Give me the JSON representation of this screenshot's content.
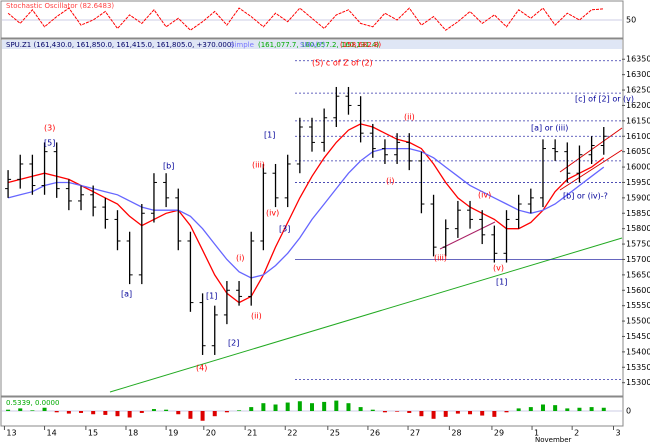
{
  "chart_data": {
    "type": "ohlc",
    "title": "SPU.Z1 (161,430.0, 161,850.0, 161,415.0, 161,805.0, +370.000)",
    "header_labels": [
      {
        "text": "Simple",
        "color": "#7777ff"
      },
      {
        "text": "(161,077.7, 160,657.2, 160,131.4)",
        "color": "#00aa00"
      },
      {
        "text": "SMA(7)",
        "color": "#7777ff"
      },
      {
        "text": "(158,682.8)",
        "color": "#ff0000"
      }
    ],
    "color": "#000000",
    "xlim": [
      -0.5,
      50.5
    ],
    "xticks": [
      {
        "value": -0.3,
        "label": "13"
      },
      {
        "value": 3,
        "label": "14"
      },
      {
        "value": 6.4,
        "label": "15"
      },
      {
        "value": 9.7,
        "label": "18"
      },
      {
        "value": 13,
        "label": "19"
      },
      {
        "value": 16.1,
        "label": "20"
      },
      {
        "value": 19.5,
        "label": "21"
      },
      {
        "value": 22.8,
        "label": "22"
      },
      {
        "value": 26.3,
        "label": "25"
      },
      {
        "value": 29.6,
        "label": "26"
      },
      {
        "value": 32.9,
        "label": "27"
      },
      {
        "value": 36.3,
        "label": "28"
      },
      {
        "value": 39.8,
        "label": "29"
      },
      {
        "value": 43.1,
        "label": "1"
      },
      {
        "value": 46.4,
        "label": "2"
      },
      {
        "value": 49.8,
        "label": "3"
      }
    ],
    "x_sublabel": "November",
    "ylim": [
      15260,
      16380
    ],
    "yticks": [
      15300,
      15350,
      15400,
      15450,
      15500,
      15550,
      15600,
      15650,
      15700,
      15750,
      15800,
      15850,
      15900,
      15950,
      16000,
      16050,
      16100,
      16150,
      16200,
      16250,
      16300,
      16350
    ],
    "open": [
      15930,
      15960,
      16010,
      15940,
      16050,
      15930,
      15890,
      15910,
      15870,
      15830,
      15760,
      15650,
      15850,
      15950,
      15900,
      15760,
      15560,
      15420,
      15520,
      15600,
      15580,
      15760,
      15980,
      15900,
      16010,
      16130,
      16080,
      16160,
      16230,
      16200,
      16110,
      16060,
      16040,
      16080,
      16020,
      15880,
      15740,
      15800,
      15860,
      15830,
      15780,
      15720,
      15830,
      15880,
      15900,
      16060,
      16050,
      15980,
      16040,
      16070
    ],
    "high": [
      15990,
      16040,
      16040,
      16080,
      16080,
      15960,
      15940,
      15940,
      15900,
      15860,
      15790,
      15880,
      15980,
      15980,
      15930,
      15790,
      15590,
      15550,
      15630,
      15630,
      15790,
      16010,
      16010,
      16040,
      16160,
      16160,
      16190,
      16260,
      16260,
      16230,
      16140,
      16090,
      16110,
      16110,
      16050,
      15910,
      15830,
      15890,
      15890,
      15860,
      15810,
      15860,
      15910,
      15930,
      16090,
      16090,
      16080,
      16070,
      16100,
      16130
    ],
    "low": [
      15900,
      15930,
      15910,
      15910,
      15900,
      15860,
      15860,
      15840,
      15800,
      15730,
      15620,
      15620,
      15820,
      15870,
      15730,
      15530,
      15390,
      15390,
      15490,
      15550,
      15550,
      15730,
      15870,
      15870,
      15980,
      16050,
      16050,
      16130,
      16170,
      16080,
      16030,
      16010,
      16010,
      15990,
      15850,
      15710,
      15710,
      15770,
      15800,
      15750,
      15690,
      15690,
      15800,
      15850,
      15870,
      16020,
      15950,
      15950,
      16010,
      16040
    ],
    "close": [
      15960,
      16010,
      15940,
      16050,
      15930,
      15890,
      15910,
      15870,
      15830,
      15760,
      15650,
      15850,
      15950,
      15900,
      15760,
      15560,
      15420,
      15520,
      15600,
      15580,
      15760,
      15980,
      15900,
      16010,
      16130,
      16080,
      16160,
      16230,
      16200,
      16110,
      16060,
      16040,
      16080,
      16020,
      15880,
      15740,
      15800,
      15860,
      15830,
      15780,
      15720,
      15830,
      15880,
      15900,
      16060,
      16050,
      15980,
      16040,
      16070,
      16100
    ],
    "series": [
      {
        "color": "#ff0000",
        "values": [
          15950,
          15960,
          15970,
          15980,
          15970,
          15960,
          15940,
          15920,
          15900,
          15880,
          15840,
          15810,
          15830,
          15850,
          15860,
          15810,
          15730,
          15650,
          15590,
          15560,
          15580,
          15650,
          15740,
          15820,
          15900,
          15970,
          16030,
          16080,
          16120,
          16140,
          16130,
          16110,
          16090,
          16080,
          16060,
          16010,
          15950,
          15900,
          15870,
          15850,
          15830,
          15800,
          15800,
          15820,
          15860,
          15920,
          15960,
          15980,
          16000,
          16030
        ]
      },
      {
        "color": "#6666ff",
        "values": [
          15900,
          15910,
          15920,
          15940,
          15950,
          15950,
          15940,
          15930,
          15920,
          15910,
          15890,
          15870,
          15860,
          15860,
          15860,
          15840,
          15800,
          15750,
          15700,
          15660,
          15640,
          15650,
          15680,
          15720,
          15770,
          15830,
          15880,
          15930,
          15980,
          16020,
          16050,
          16060,
          16060,
          16060,
          16050,
          16030,
          16000,
          15970,
          15940,
          15920,
          15900,
          15880,
          15860,
          15850,
          15860,
          15880,
          15910,
          15940,
          15970,
          16000
        ]
      }
    ],
    "hlines": [
      16345,
      16240,
      16150,
      16100,
      16020,
      15950,
      15700,
      15310
    ],
    "annotations": [
      {
        "text": "(3)",
        "color": "#ff0000"
      },
      {
        "text": "[5]",
        "color": "#000099"
      },
      {
        "text": "[a]",
        "color": "#000099"
      },
      {
        "text": "[b]",
        "color": "#000099"
      },
      {
        "text": "(4)",
        "color": "#ff0000"
      },
      {
        "text": "[1]",
        "color": "#000099"
      },
      {
        "text": "[2]",
        "color": "#000099"
      },
      {
        "text": "(i)",
        "color": "#ff0000"
      },
      {
        "text": "(ii)",
        "color": "#ff0000"
      },
      {
        "text": "(iii)",
        "color": "#ff0000"
      },
      {
        "text": "[1]",
        "color": "#000099"
      },
      {
        "text": "(iv)",
        "color": "#ff0000"
      },
      {
        "text": "[3]",
        "color": "#000099"
      },
      {
        "text": "(5) c of Z of (2)",
        "color": "#ff0000"
      },
      {
        "text": "(ii)",
        "color": "#ff0000"
      },
      {
        "text": "(i)",
        "color": "#ff0000"
      },
      {
        "text": "(iii)",
        "color": "#ff0000"
      },
      {
        "text": "(iv)",
        "color": "#ff0000"
      },
      {
        "text": "(v)",
        "color": "#ff0000"
      },
      {
        "text": "[1]",
        "color": "#000099"
      },
      {
        "text": "[a] or (iii)",
        "color": "#000099"
      },
      {
        "text": "[b] or (iv)-?",
        "color": "#000099"
      },
      {
        "text": "[c] of [2] or (v)",
        "color": "#000099"
      }
    ],
    "stochastic": {
      "label": "Stochastic Oscillator (82.6483)",
      "color": "#ff0000",
      "ylim": [
        0,
        100
      ],
      "yticks": [
        50
      ],
      "values": [
        70,
        40,
        80,
        30,
        60,
        85,
        35,
        50,
        75,
        25,
        65,
        40,
        80,
        30,
        55,
        20,
        45,
        75,
        35,
        85,
        60,
        30,
        70,
        45,
        85,
        55,
        25,
        65,
        80,
        40,
        30,
        70,
        50,
        85,
        35,
        60,
        20,
        45,
        75,
        40,
        65,
        30,
        80,
        55,
        85,
        35,
        70,
        50,
        80,
        83
      ]
    },
    "macd": {
      "label": "0.5339, 0.0000",
      "ylim": [
        -2,
        2
      ],
      "yticks": [
        0
      ],
      "values": [
        0.2,
        0.4,
        0.1,
        0.5,
        -0.2,
        -0.4,
        -0.3,
        -0.5,
        -0.6,
        -0.8,
        -1.0,
        -0.3,
        0.3,
        0.2,
        -0.5,
        -1.2,
        -1.5,
        -0.8,
        -0.2,
        0.1,
        0.6,
        1.2,
        1.0,
        1.3,
        1.5,
        1.2,
        1.4,
        1.6,
        1.2,
        0.6,
        0.2,
        -0.2,
        -0.1,
        -0.3,
        -0.8,
        -1.2,
        -0.9,
        -0.4,
        -0.5,
        -0.7,
        -0.9,
        -0.2,
        0.4,
        0.6,
        1.0,
        0.9,
        0.4,
        0.5,
        0.6,
        0.5
      ]
    }
  }
}
